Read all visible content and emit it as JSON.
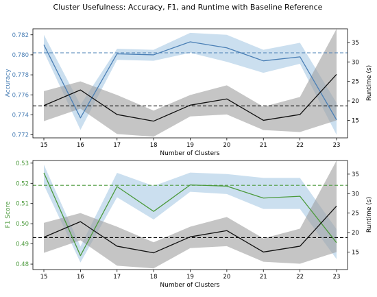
{
  "figure_title": "Cluster Usefulness: Accuracy, F1, and Runtime with Baseline Reference",
  "colors": {
    "accuracy": "#4a7fb5",
    "accuracy_band": "#b9d4ea",
    "f1": "#4c9a3c",
    "f1_band": "#b9d4ea",
    "runtime": "#111111",
    "runtime_band": "#9e9e9e"
  },
  "chart_data": [
    {
      "type": "line",
      "xlabel": "Number of Clusters",
      "x": [
        15,
        16,
        17,
        18,
        19,
        20,
        21,
        22,
        23
      ],
      "left_axis": {
        "label": "Accuracy",
        "ylim": [
          0.7717,
          0.7826
        ],
        "ticks": [
          "0.772",
          "0.774",
          "0.776",
          "0.778",
          "0.780",
          "0.782"
        ],
        "tick_values": [
          0.772,
          0.774,
          0.776,
          0.778,
          0.78,
          0.782
        ]
      },
      "right_axis": {
        "label": "Runtime (s)",
        "ylim": [
          10.5,
          38.5
        ],
        "ticks": [
          "15",
          "20",
          "25",
          "30",
          "35"
        ],
        "tick_values": [
          15,
          20,
          25,
          30,
          35
        ]
      },
      "series": [
        {
          "key": "accuracy",
          "axis": "left",
          "values": [
            0.781,
            0.7737,
            0.7801,
            0.78,
            0.7813,
            0.7807,
            0.7794,
            0.7798,
            0.7735
          ],
          "band_low": [
            0.7803,
            0.7725,
            0.7795,
            0.7794,
            0.7802,
            0.7793,
            0.7782,
            0.7791,
            0.772
          ],
          "band_high": [
            0.782,
            0.775,
            0.7806,
            0.7805,
            0.7822,
            0.782,
            0.7805,
            0.7812,
            0.7752
          ],
          "baseline": 0.7802
        },
        {
          "key": "runtime",
          "axis": "right",
          "values": [
            18.8,
            22.8,
            16.5,
            14.8,
            18.9,
            20.5,
            15.0,
            16.5,
            26.8
          ],
          "band_low": [
            14.8,
            18.0,
            11.5,
            10.8,
            16.0,
            16.5,
            12.5,
            12.0,
            15.0
          ],
          "band_high": [
            22.5,
            25.0,
            21.5,
            17.5,
            21.5,
            24.0,
            18.5,
            21.0,
            38.5
          ],
          "baseline": 18.7
        }
      ]
    },
    {
      "type": "line",
      "xlabel": "Number of Clusters",
      "x": [
        15,
        16,
        17,
        18,
        19,
        20,
        21,
        22,
        23
      ],
      "left_axis": {
        "label": "F1 Score",
        "ylim": [
          0.4773,
          0.5313
        ],
        "ticks": [
          "0.48",
          "0.49",
          "0.50",
          "0.51",
          "0.52",
          "0.53"
        ],
        "tick_values": [
          0.48,
          0.49,
          0.5,
          0.51,
          0.52,
          0.53
        ]
      },
      "right_axis": {
        "label": "Runtime (s)",
        "ylim": [
          10.5,
          38.5
        ],
        "ticks": [
          "15",
          "20",
          "25",
          "30",
          "35"
        ],
        "tick_values": [
          15,
          20,
          25,
          30,
          35
        ]
      },
      "series": [
        {
          "key": "f1",
          "axis": "left",
          "values": [
            0.5252,
            0.4842,
            0.5184,
            0.5061,
            0.5192,
            0.5186,
            0.5127,
            0.5136,
            0.4906
          ],
          "band_low": [
            0.5192,
            0.4808,
            0.5131,
            0.5021,
            0.5158,
            0.5147,
            0.5073,
            0.5073,
            0.4825
          ],
          "band_high": [
            0.5292,
            0.4887,
            0.5252,
            0.5187,
            0.5253,
            0.5246,
            0.5227,
            0.5227,
            0.4973
          ],
          "baseline": 0.519
        },
        {
          "key": "runtime",
          "axis": "right",
          "values": [
            18.8,
            22.8,
            16.5,
            14.8,
            18.9,
            20.5,
            15.0,
            16.5,
            26.8
          ],
          "band_low": [
            14.8,
            18.0,
            11.5,
            10.8,
            16.0,
            16.5,
            12.5,
            12.0,
            15.0
          ],
          "band_high": [
            22.5,
            25.0,
            21.5,
            17.5,
            21.5,
            24.0,
            18.5,
            21.0,
            38.5
          ],
          "baseline": 18.7
        }
      ]
    }
  ]
}
